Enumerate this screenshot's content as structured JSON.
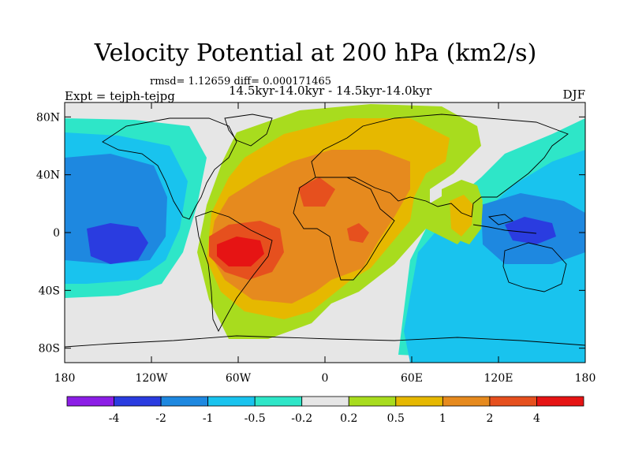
{
  "header": {
    "title": "Velocity Potential at 200 hPa (km2/s)",
    "stats": "rmsd= 1.12659 diff= 0.000171465",
    "experiment": "Expt = tejph-tejpg",
    "subtitle": "14.5kyr-14.0kyr - 14.5kyr-14.0kyr",
    "season": "DJF"
  },
  "chart_data": {
    "type": "heatmap",
    "title": "Velocity Potential at 200 hPa (km2/s)",
    "projection": "cylindrical-equidistant",
    "xlim": [
      -180,
      180
    ],
    "ylim": [
      -90,
      90
    ],
    "x_ticks": [
      {
        "value": -180,
        "label": "180"
      },
      {
        "value": -120,
        "label": "120W"
      },
      {
        "value": -60,
        "label": "60W"
      },
      {
        "value": 0,
        "label": "0"
      },
      {
        "value": 60,
        "label": "60E"
      },
      {
        "value": 120,
        "label": "120E"
      },
      {
        "value": 180,
        "label": "180"
      }
    ],
    "y_ticks": [
      {
        "value": 80,
        "label": "80N"
      },
      {
        "value": 40,
        "label": "40N"
      },
      {
        "value": 0,
        "label": "0"
      },
      {
        "value": -40,
        "label": "40S"
      },
      {
        "value": -80,
        "label": "80S"
      }
    ],
    "colorbar": {
      "labels": [
        "-4",
        "-2",
        "-1",
        "-0.5",
        "-0.2",
        "0.2",
        "0.5",
        "1",
        "2",
        "4"
      ],
      "colors": [
        "#8c1ee6",
        "#2a3ce0",
        "#1e88e0",
        "#19c3ee",
        "#2ee6c8",
        "#e6e6e6",
        "#a8dc1e",
        "#e6b800",
        "#e68a1e",
        "#e6501e",
        "#e61414"
      ]
    },
    "centers": [
      {
        "name": "tropical South America max",
        "lon": -57,
        "lat": -8,
        "value": 4
      },
      {
        "name": "North Africa max",
        "lon": -5,
        "lat": 25,
        "value": 2.5
      },
      {
        "name": "Equatorial Africa max",
        "lon": 20,
        "lat": 0,
        "value": 2
      },
      {
        "name": "Central Pacific min",
        "lon": -145,
        "lat": -5,
        "value": -3
      },
      {
        "name": "Maritime Continent min",
        "lon": 135,
        "lat": -2,
        "value": -2.5
      },
      {
        "name": "Indochina local max",
        "lon": 100,
        "lat": 15,
        "value": 1
      }
    ]
  }
}
